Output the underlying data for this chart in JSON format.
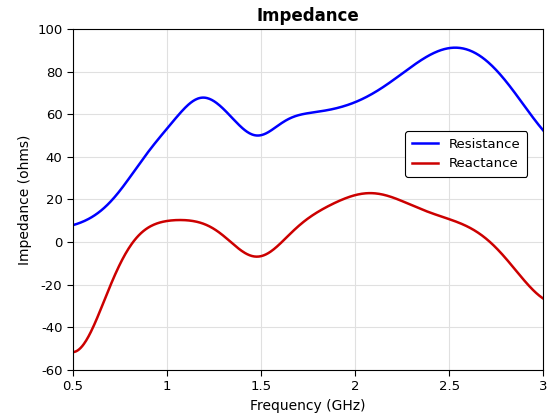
{
  "title": "Impedance",
  "xlabel": "Frequency (GHz)",
  "ylabel": "Impedance (ohms)",
  "xlim": [
    0.5,
    3.0
  ],
  "ylim": [
    -60,
    100
  ],
  "yticks": [
    -60,
    -40,
    -20,
    0,
    20,
    40,
    60,
    80,
    100
  ],
  "xticks": [
    0.5,
    1.0,
    1.5,
    2.0,
    2.5,
    3.0
  ],
  "resistance_color": "#0000FF",
  "reactance_color": "#CC0000",
  "line_width": 1.8,
  "legend_labels": [
    "Resistance",
    "Reactance"
  ],
  "background_color": "#FFFFFF",
  "grid_color": "#E0E0E0"
}
